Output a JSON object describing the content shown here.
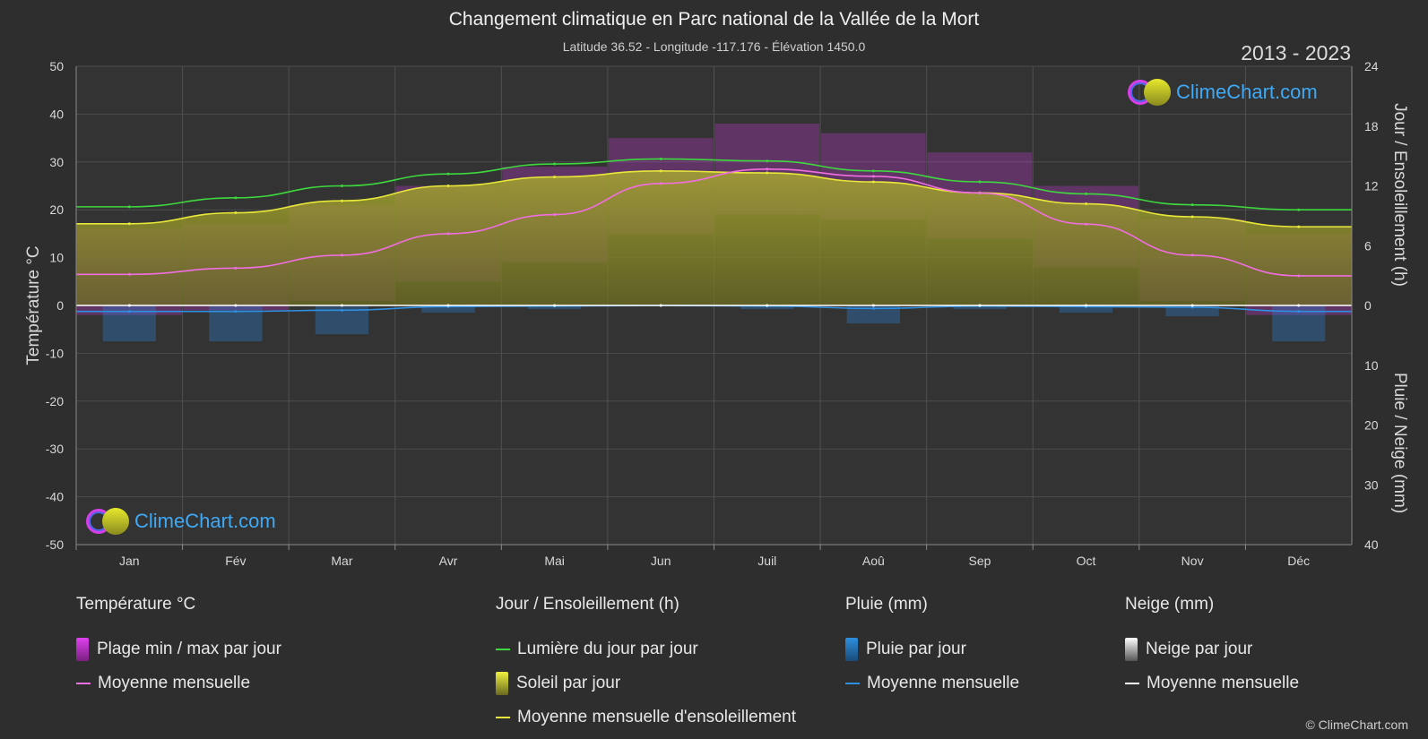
{
  "header": {
    "title": "Changement climatique en Parc national de la Vallée de la Mort",
    "subtitle": "Latitude 36.52 - Longitude -117.176 - Élévation 1450.0",
    "years": "2013 - 2023"
  },
  "brand": {
    "name": "ClimeChart.com",
    "copyright": "© ClimeChart.com"
  },
  "colors": {
    "background": "#2e2e2e",
    "temp_range": "#d63ee8",
    "temp_mean": "#f06ee0",
    "daylight": "#3ed83e",
    "sunshine_fill": "#9a9a28",
    "sunshine_mean": "#e8e83a",
    "rain": "#2b7fd4",
    "rain_mean": "#2e8fe0",
    "snow": "#bbbbbb",
    "snow_mean": "#ffffff"
  },
  "chart_data": {
    "type": "line",
    "categories": [
      "Jan",
      "Fév",
      "Mar",
      "Avr",
      "Mai",
      "Jun",
      "Juil",
      "Aoû",
      "Sep",
      "Oct",
      "Nov",
      "Déc"
    ],
    "y_left": {
      "label": "Température °C",
      "ylim": [
        -50,
        50
      ],
      "ticks": [
        50,
        40,
        30,
        20,
        10,
        0,
        -10,
        -20,
        -30,
        -40,
        -50
      ]
    },
    "y_right_top": {
      "label": "Jour / Ensoleillement (h)",
      "ylim": [
        0,
        24
      ],
      "ticks": [
        24,
        18,
        12,
        6,
        0
      ]
    },
    "y_right_bottom": {
      "label": "Pluie / Neige (mm)",
      "ylim": [
        0,
        40
      ],
      "ticks": [
        10,
        20,
        30,
        40
      ]
    },
    "grid": true,
    "series": [
      {
        "name": "Moyenne mensuelle",
        "group": "Température °C",
        "unit": "°C",
        "values": [
          6.5,
          7.8,
          10.5,
          15.0,
          19.0,
          25.5,
          28.5,
          27.0,
          23.5,
          17.0,
          10.5,
          6.2
        ]
      },
      {
        "name": "Plage min / max par jour",
        "group": "Température °C",
        "unit": "°C",
        "min": [
          -2,
          -1,
          1,
          5,
          9,
          15,
          19,
          18,
          14,
          8,
          1,
          -2
        ],
        "max": [
          16,
          17,
          21,
          25,
          29,
          35,
          38,
          36,
          32,
          25,
          18,
          15
        ]
      },
      {
        "name": "Lumière du jour par jour",
        "group": "Jour / Ensoleillement (h)",
        "unit": "h",
        "values": [
          9.9,
          10.8,
          12.0,
          13.2,
          14.2,
          14.7,
          14.5,
          13.5,
          12.4,
          11.2,
          10.1,
          9.6
        ]
      },
      {
        "name": "Moyenne mensuelle d'ensoleillement",
        "group": "Jour / Ensoleillement (h)",
        "unit": "h",
        "values": [
          8.2,
          9.3,
          10.5,
          12.0,
          12.9,
          13.5,
          13.3,
          12.4,
          11.3,
          10.2,
          8.9,
          7.9
        ]
      },
      {
        "name": "Moyenne mensuelle",
        "group": "Pluie (mm)",
        "unit": "mm",
        "values": [
          1.0,
          1.0,
          0.8,
          0.2,
          0.1,
          0.0,
          0.1,
          0.5,
          0.1,
          0.2,
          0.3,
          1.0
        ]
      },
      {
        "name": "Moyenne mensuelle",
        "group": "Neige (mm)",
        "unit": "mm",
        "values": [
          0,
          0,
          0,
          0,
          0,
          0,
          0,
          0,
          0,
          0,
          0,
          0
        ]
      }
    ]
  },
  "legend": {
    "temperature": {
      "title": "Température °C",
      "items": [
        "Plage min / max par jour",
        "Moyenne mensuelle"
      ]
    },
    "sun": {
      "title": "Jour / Ensoleillement (h)",
      "items": [
        "Lumière du jour par jour",
        "Soleil par jour",
        "Moyenne mensuelle d'ensoleillement"
      ]
    },
    "rain": {
      "title": "Pluie (mm)",
      "items": [
        "Pluie par jour",
        "Moyenne mensuelle"
      ]
    },
    "snow": {
      "title": "Neige (mm)",
      "items": [
        "Neige par jour",
        "Moyenne mensuelle"
      ]
    }
  }
}
